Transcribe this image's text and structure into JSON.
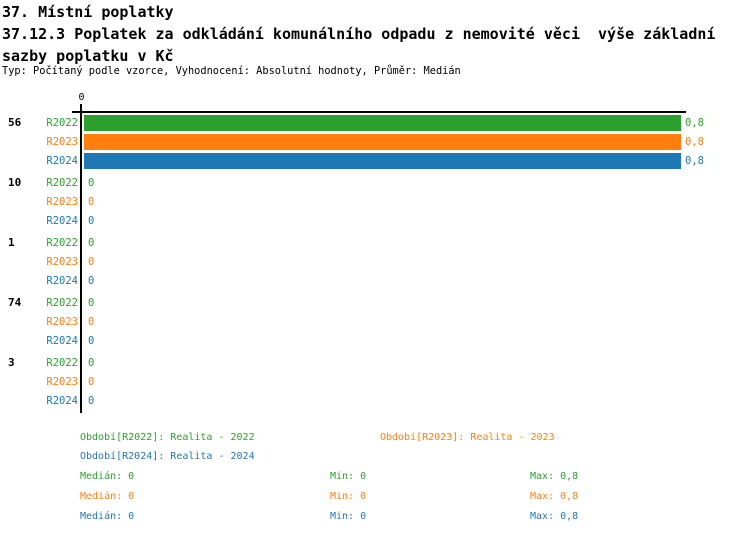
{
  "header": {
    "title": "37. Místní poplatky",
    "subtitle_line1": "37.12.3 Poplatek za odkládání komunálního odpadu z nemovité věci  výše základní",
    "subtitle_line2": "sazby poplatku v Kč",
    "meta": "Typ: Počítaný podle vzorce, Vyhodnocení: Absolutní hodnoty, Průměr: Medián"
  },
  "colors": {
    "r2022": "#2ca02c",
    "r2023": "#ff7f0e",
    "r2024": "#1f77b4",
    "axis": "#000000"
  },
  "chart_data": {
    "type": "bar",
    "orientation": "horizontal",
    "title": "37.12.3 Poplatek za odkládání komunálního odpadu z nemovité věci  výše základní sazby poplatku v Kč",
    "categories": [
      "56",
      "10",
      "1",
      "74",
      "3"
    ],
    "series": [
      {
        "name": "R2022",
        "label": "Realita - 2022",
        "color": "#2ca02c",
        "values": [
          0.8,
          0,
          0,
          0,
          0
        ]
      },
      {
        "name": "R2023",
        "label": "Realita - 2023",
        "color": "#ff7f0e",
        "values": [
          0.8,
          0,
          0,
          0,
          0
        ]
      },
      {
        "name": "R2024",
        "label": "Realita - 2024",
        "color": "#1f77b4",
        "values": [
          0.8,
          0,
          0,
          0,
          0
        ]
      }
    ],
    "xlim": [
      0,
      0.8
    ],
    "axis_tick_label": "0",
    "grid": false,
    "legend_position": "bottom",
    "groups": [
      {
        "label": "56",
        "rows": [
          {
            "series": "R2022",
            "value": 0.8,
            "value_label": "0,8"
          },
          {
            "series": "R2023",
            "value": 0.8,
            "value_label": "0,8"
          },
          {
            "series": "R2024",
            "value": 0.8,
            "value_label": "0,8"
          }
        ]
      },
      {
        "label": "10",
        "rows": [
          {
            "series": "R2022",
            "value": 0,
            "value_label": "0"
          },
          {
            "series": "R2023",
            "value": 0,
            "value_label": "0"
          },
          {
            "series": "R2024",
            "value": 0,
            "value_label": "0"
          }
        ]
      },
      {
        "label": "1",
        "rows": [
          {
            "series": "R2022",
            "value": 0,
            "value_label": "0"
          },
          {
            "series": "R2023",
            "value": 0,
            "value_label": "0"
          },
          {
            "series": "R2024",
            "value": 0,
            "value_label": "0"
          }
        ]
      },
      {
        "label": "74",
        "rows": [
          {
            "series": "R2022",
            "value": 0,
            "value_label": "0"
          },
          {
            "series": "R2023",
            "value": 0,
            "value_label": "0"
          },
          {
            "series": "R2024",
            "value": 0,
            "value_label": "0"
          }
        ]
      },
      {
        "label": "3",
        "rows": [
          {
            "series": "R2022",
            "value": 0,
            "value_label": "0"
          },
          {
            "series": "R2023",
            "value": 0,
            "value_label": "0"
          },
          {
            "series": "R2024",
            "value": 0,
            "value_label": "0"
          }
        ]
      }
    ]
  },
  "legend": {
    "period_items": [
      {
        "label": "Období[R2022]: Realita - 2022",
        "color": "#2ca02c"
      },
      {
        "label": "Období[R2023]: Realita - 2023",
        "color": "#ff7f0e"
      },
      {
        "label": "Období[R2024]: Realita - 2024",
        "color": "#1f77b4"
      }
    ],
    "stats": [
      {
        "series": "R2022",
        "median": "Medián: 0",
        "min": "Min: 0",
        "max": "Max: 0,8",
        "color": "#2ca02c"
      },
      {
        "series": "R2023",
        "median": "Medián: 0",
        "min": "Min: 0",
        "max": "Max: 0,8",
        "color": "#ff7f0e"
      },
      {
        "series": "R2024",
        "median": "Medián: 0",
        "min": "Min: 0",
        "max": "Max: 0,8",
        "color": "#1f77b4"
      }
    ]
  }
}
